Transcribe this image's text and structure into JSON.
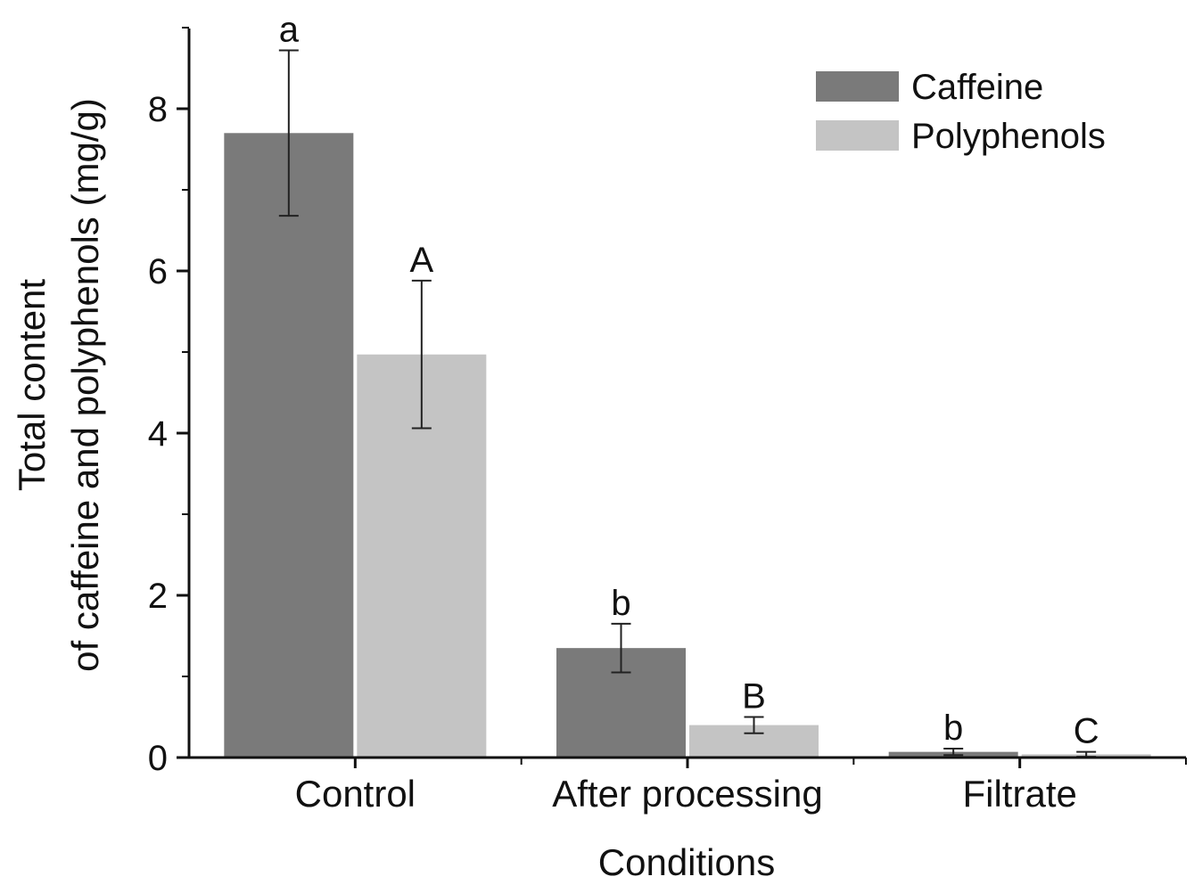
{
  "chart_data": {
    "type": "bar",
    "title": "",
    "xlabel": "Conditions",
    "ylabel_lines": [
      "Total content",
      "of caffeine and polyphenols (mg/g)"
    ],
    "categories": [
      "Control",
      "After processing",
      "Filtrate"
    ],
    "ylim": [
      0,
      9
    ],
    "yticks": [
      0,
      2,
      4,
      6,
      8
    ],
    "ytick_labels": [
      "0",
      "2",
      "4",
      "6",
      "8"
    ],
    "grid": false,
    "legend_position": "top-right",
    "series": [
      {
        "name": "Caffeine",
        "color": "#7a7a7a",
        "values": [
          7.7,
          1.35,
          0.07
        ],
        "errors": [
          1.02,
          0.3,
          0.04
        ],
        "letters": [
          "a",
          "b",
          "b"
        ]
      },
      {
        "name": "Polyphenols",
        "color": "#c4c4c4",
        "values": [
          4.97,
          0.4,
          0.04
        ],
        "errors": [
          0.91,
          0.1,
          0.03
        ],
        "letters": [
          "A",
          "B",
          "C"
        ]
      }
    ]
  }
}
